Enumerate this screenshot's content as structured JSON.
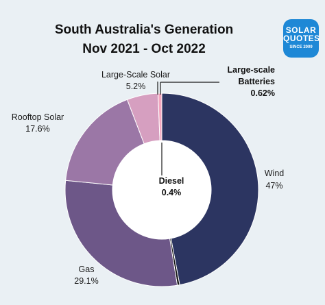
{
  "title_line1": "South Australia's Generation",
  "title_line2": "Nov 2021 - Oct 2022",
  "logo": {
    "line1": "SOLAR",
    "line2": "QUOTES",
    "line3": "SINCE 2009"
  },
  "colors": {
    "background": "#eaf0f4",
    "wind": "#2c3561",
    "gas": "#6d5788",
    "rooftop_solar": "#9b77a6",
    "large_scale_solar": "#d69fc0",
    "large_scale_batteries": "#f3a6bf",
    "diesel": "#1a1a1a",
    "logo": "#1e88d6"
  },
  "chart_data": {
    "type": "pie",
    "title": "South Australia's Generation Nov 2021 - Oct 2022",
    "donut": true,
    "slices": [
      {
        "name": "Wind",
        "value": 47,
        "value_label": "47%",
        "color": "#2c3561"
      },
      {
        "name": "Diesel",
        "value": 0.4,
        "value_label": "0.4%",
        "color": "#1a1a1a"
      },
      {
        "name": "Gas",
        "value": 29.1,
        "value_label": "29.1%",
        "color": "#6d5788"
      },
      {
        "name": "Rooftop Solar",
        "value": 17.6,
        "value_label": "17.6%",
        "color": "#9b77a6"
      },
      {
        "name": "Large-Scale Solar",
        "value": 5.2,
        "value_label": "5.2%",
        "color": "#d69fc0"
      },
      {
        "name": "Large-scale Batteries",
        "value": 0.62,
        "value_label": "0.62%",
        "color": "#f3a6bf"
      }
    ],
    "labels": {
      "wind": {
        "name": "Wind",
        "value": "47%"
      },
      "diesel": {
        "name": "Diesel",
        "value": "0.4%"
      },
      "gas": {
        "name": "Gas",
        "value": "29.1%"
      },
      "rooftop_solar": {
        "name": "Rooftop Solar",
        "value": "17.6%"
      },
      "large_scale_solar": {
        "name": "Large-Scale Solar",
        "value": "5.2%"
      },
      "large_scale_batteries": {
        "name_line1": "Large-scale",
        "name_line2": "Batteries",
        "value": "0.62%"
      }
    }
  }
}
